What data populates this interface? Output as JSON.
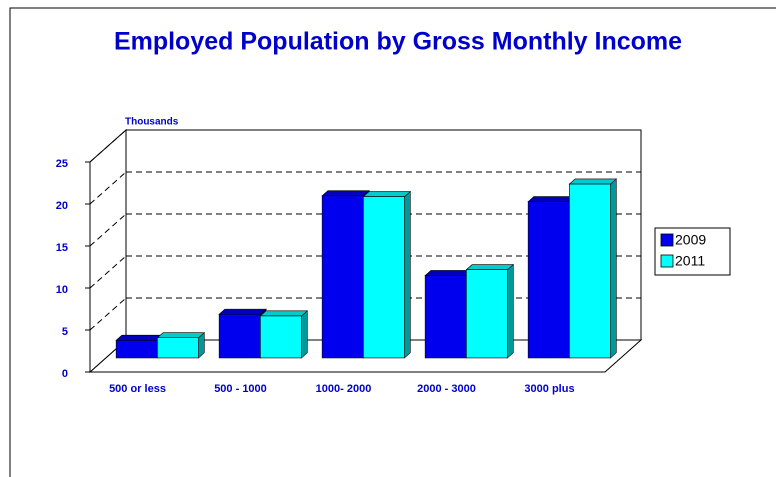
{
  "chart_data": {
    "type": "bar3d",
    "title": "Employed Population by Gross Monthly Income",
    "y_label": "Thousands",
    "categories": [
      "500 or less",
      "500 - 1000",
      "1000- 2000",
      "2000 - 3000",
      "3000 plus"
    ],
    "series": [
      {
        "name": "2009",
        "color": "#0000ee",
        "values": [
          2.1,
          5.2,
          19.3,
          9.8,
          18.6
        ]
      },
      {
        "name": "2011",
        "color": "#00ffff",
        "values": [
          2.4,
          5.0,
          19.2,
          10.5,
          20.7
        ]
      }
    ],
    "ylim": [
      0,
      25
    ],
    "yticks": [
      0,
      5,
      10,
      15,
      20,
      25
    ],
    "grid": true,
    "legend": "right"
  }
}
